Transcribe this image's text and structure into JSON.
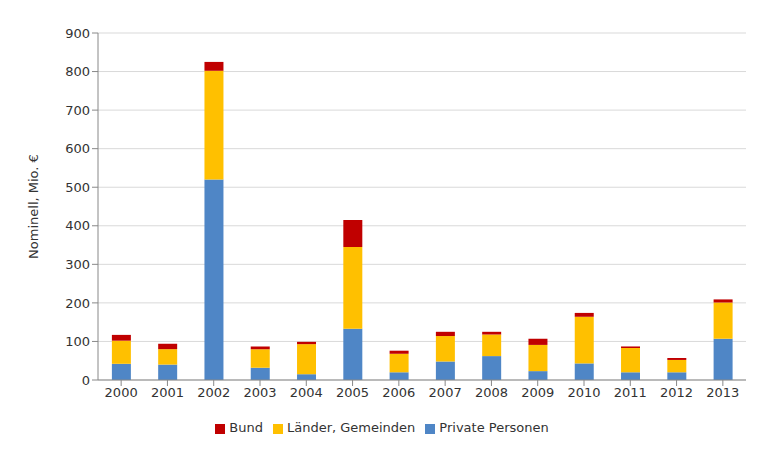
{
  "chart_data": {
    "type": "bar",
    "stacked": true,
    "ylabel": "Nominell, Mio. €",
    "categories": [
      "2000",
      "2001",
      "2002",
      "2003",
      "2004",
      "2005",
      "2006",
      "2007",
      "2008",
      "2009",
      "2010",
      "2011",
      "2012",
      "2013"
    ],
    "series": [
      {
        "name": "Private Personen",
        "color": "#4f86c6",
        "values": [
          42,
          40,
          520,
          32,
          15,
          133,
          20,
          48,
          62,
          23,
          43,
          20,
          20,
          107
        ]
      },
      {
        "name": "Länder, Gemeinden",
        "color": "#ffc000",
        "values": [
          60,
          40,
          282,
          48,
          78,
          212,
          48,
          66,
          56,
          68,
          121,
          63,
          32,
          94
        ]
      },
      {
        "name": "Bund",
        "color": "#c00000",
        "values": [
          15,
          14,
          23,
          7,
          6,
          70,
          8,
          11,
          7,
          16,
          10,
          4,
          5,
          8
        ]
      }
    ],
    "ylim": [
      0,
      900
    ],
    "yticks": [
      0,
      100,
      200,
      300,
      400,
      500,
      600,
      700,
      800,
      900
    ],
    "grid": true,
    "legend": "bottom"
  }
}
